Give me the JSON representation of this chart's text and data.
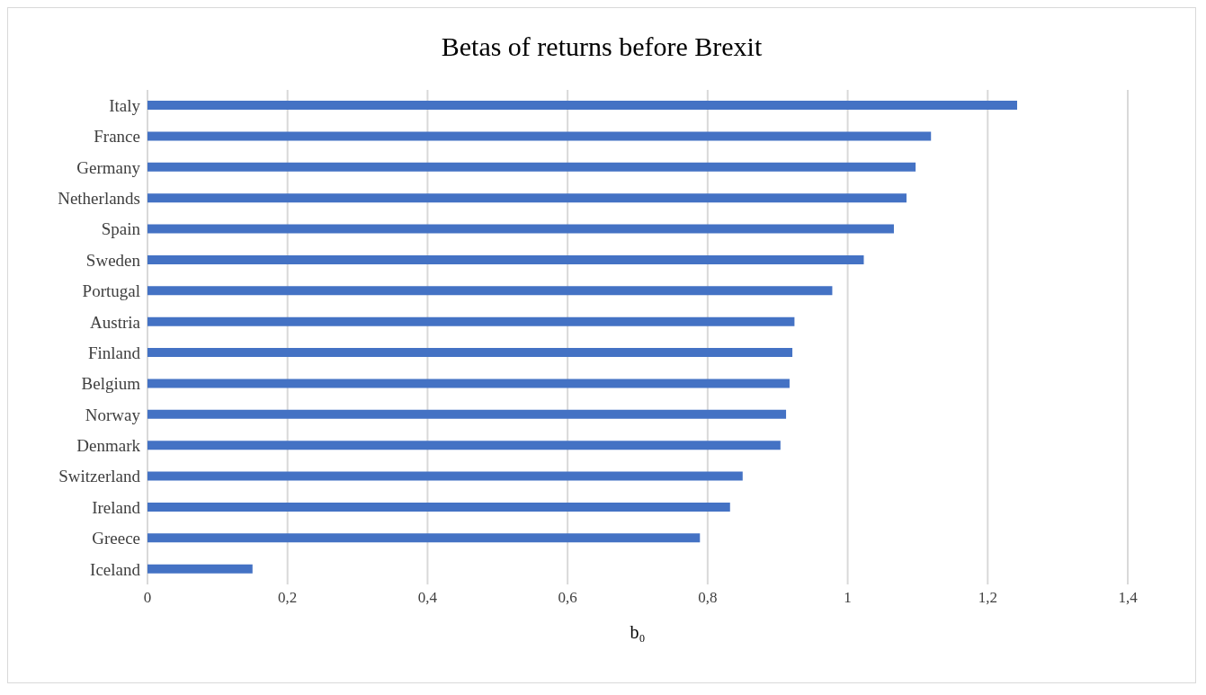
{
  "chart_data": {
    "type": "bar",
    "orientation": "horizontal",
    "title": "Betas of returns before Brexit",
    "xlabel": "b₀",
    "categories": [
      "Italy",
      "France",
      "Germany",
      "Netherlands",
      "Spain",
      "Sweden",
      "Portugal",
      "Austria",
      "Finland",
      "Belgium",
      "Norway",
      "Denmark",
      "Switzerland",
      "Ireland",
      "Greece",
      "Iceland"
    ],
    "values": [
      1.242,
      1.119,
      1.097,
      1.084,
      1.066,
      1.023,
      0.978,
      0.924,
      0.921,
      0.917,
      0.912,
      0.904,
      0.85,
      0.832,
      0.789,
      0.15
    ],
    "color": "#4472c4",
    "xlim": [
      0,
      1.4
    ],
    "xticks": [
      {
        "value": 0,
        "label": "0"
      },
      {
        "value": 0.2,
        "label": "0,2"
      },
      {
        "value": 0.4,
        "label": "0,4"
      },
      {
        "value": 0.6,
        "label": "0,6"
      },
      {
        "value": 0.8,
        "label": "0,8"
      },
      {
        "value": 1,
        "label": "1"
      },
      {
        "value": 1.2,
        "label": "1,2"
      },
      {
        "value": 1.4,
        "label": "1,4"
      }
    ],
    "grid": "x"
  }
}
